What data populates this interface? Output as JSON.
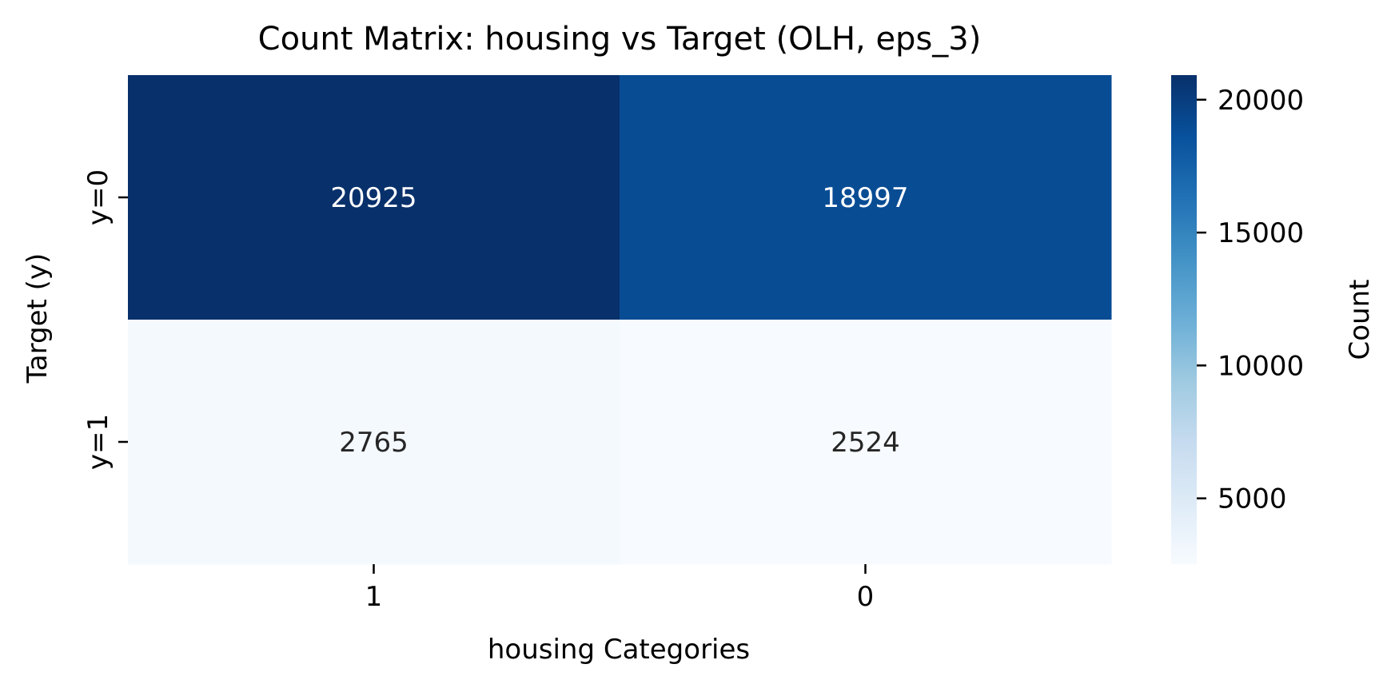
{
  "chart_data": {
    "type": "heatmap",
    "title": "Count Matrix: housing vs Target (OLH, eps_3)",
    "xlabel": "housing Categories",
    "ylabel": "Target (y)",
    "x_categories": [
      "1",
      "0"
    ],
    "y_categories": [
      "y=0",
      "y=1"
    ],
    "values": [
      [
        20925,
        18997
      ],
      [
        2765,
        2524
      ]
    ],
    "colormap": "Blues",
    "colorbar": {
      "label": "Count",
      "range": [
        2524,
        20925
      ],
      "ticks": [
        5000,
        10000,
        15000,
        20000
      ],
      "tick_labels": [
        "5000",
        "10000",
        "15000",
        "20000"
      ]
    },
    "cell_labels": [
      "20925",
      "18997",
      "2765",
      "2524"
    ],
    "annotation_colors": {
      "dark_text": "#262626",
      "light_text": "#ffffff"
    }
  }
}
